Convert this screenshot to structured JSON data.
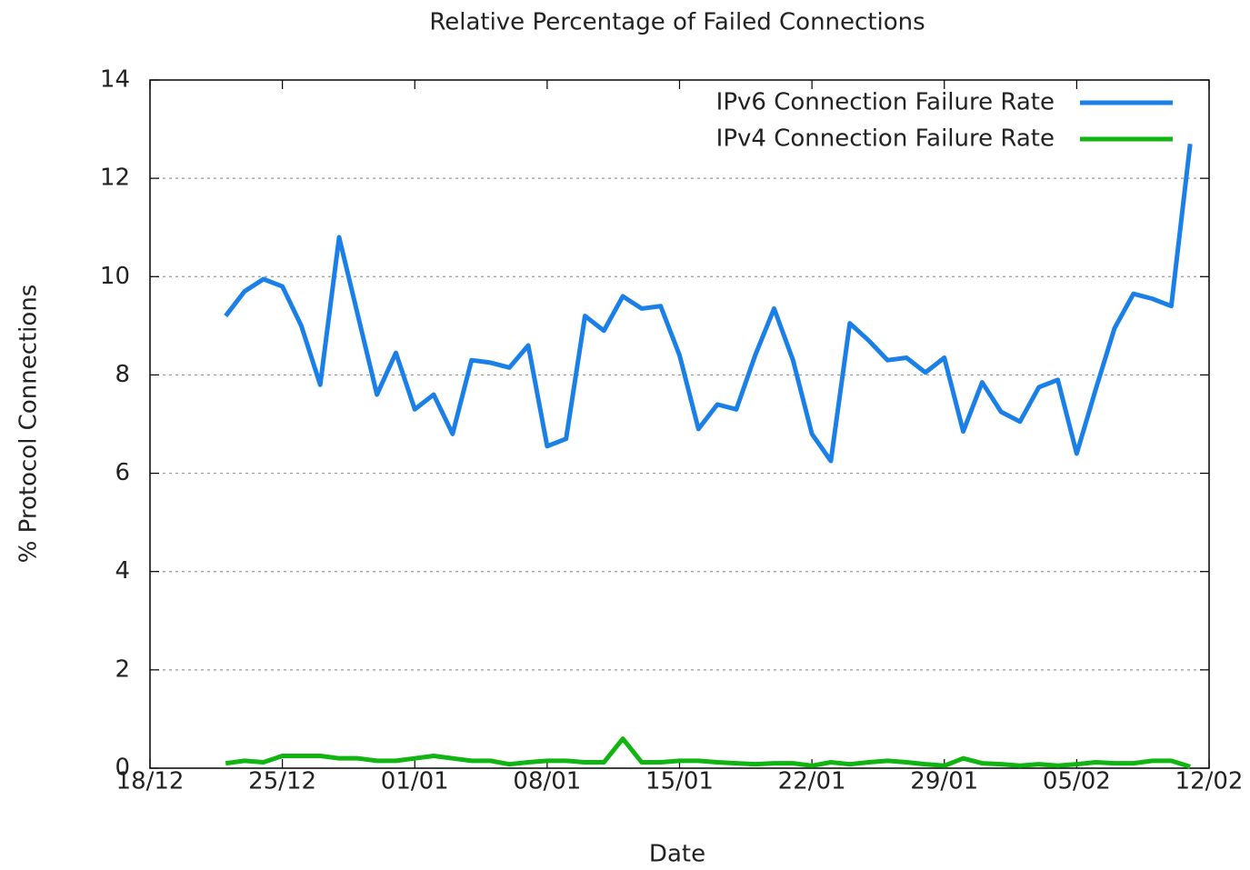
{
  "chart_data": {
    "type": "line",
    "title": "Relative Percentage of Failed Connections",
    "xlabel": "Date",
    "ylabel": "% Protocol Connections",
    "x": [
      "22/12",
      "23/12",
      "24/12",
      "25/12",
      "26/12",
      "27/12",
      "28/12",
      "29/12",
      "30/12",
      "31/12",
      "01/01",
      "02/01",
      "03/01",
      "04/01",
      "05/01",
      "06/01",
      "07/01",
      "08/01",
      "09/01",
      "10/01",
      "11/01",
      "12/01",
      "13/01",
      "14/01",
      "15/01",
      "16/01",
      "17/01",
      "18/01",
      "19/01",
      "20/01",
      "21/01",
      "22/01",
      "23/01",
      "24/01",
      "25/01",
      "26/01",
      "27/01",
      "28/01",
      "29/01",
      "30/01",
      "31/01",
      "01/02",
      "02/02",
      "03/02",
      "04/02",
      "05/02",
      "06/02",
      "07/02",
      "08/02",
      "09/02",
      "10/02",
      "11/02"
    ],
    "series": [
      {
        "name": "IPv6 Connection Failure Rate",
        "color": "#1a80e8",
        "values": [
          9.2,
          9.7,
          9.95,
          9.8,
          9.0,
          7.8,
          10.8,
          9.2,
          7.6,
          8.45,
          7.3,
          7.6,
          6.8,
          8.3,
          8.25,
          8.15,
          8.6,
          6.55,
          6.7,
          9.2,
          8.9,
          9.6,
          9.35,
          9.4,
          8.4,
          6.9,
          7.4,
          7.3,
          8.4,
          9.35,
          8.3,
          6.8,
          6.25,
          9.05,
          8.7,
          8.3,
          8.35,
          8.05,
          8.35,
          6.85,
          7.85,
          7.25,
          7.05,
          7.75,
          7.9,
          6.4,
          7.7,
          8.95,
          9.65,
          9.55,
          9.4,
          12.7
        ]
      },
      {
        "name": "IPv4 Connection Failure Rate",
        "color": "#11b511",
        "values": [
          0.1,
          0.15,
          0.12,
          0.25,
          0.25,
          0.25,
          0.2,
          0.2,
          0.15,
          0.15,
          0.2,
          0.25,
          0.2,
          0.15,
          0.15,
          0.08,
          0.12,
          0.15,
          0.15,
          0.12,
          0.12,
          0.6,
          0.12,
          0.12,
          0.15,
          0.15,
          0.12,
          0.1,
          0.08,
          0.1,
          0.1,
          0.05,
          0.12,
          0.08,
          0.12,
          0.15,
          0.12,
          0.08,
          0.05,
          0.2,
          0.1,
          0.08,
          0.05,
          0.08,
          0.05,
          0.08,
          0.12,
          0.1,
          0.1,
          0.15,
          0.15,
          0.03
        ]
      }
    ],
    "xlim": [
      "18/12",
      "12/02"
    ],
    "xticks": [
      "18/12",
      "25/12",
      "01/01",
      "08/01",
      "15/01",
      "22/01",
      "29/01",
      "05/02",
      "12/02"
    ],
    "ylim": [
      0,
      14
    ],
    "yticks": [
      0,
      2,
      4,
      6,
      8,
      10,
      12,
      14
    ],
    "grid": true,
    "legend": "upper right"
  }
}
